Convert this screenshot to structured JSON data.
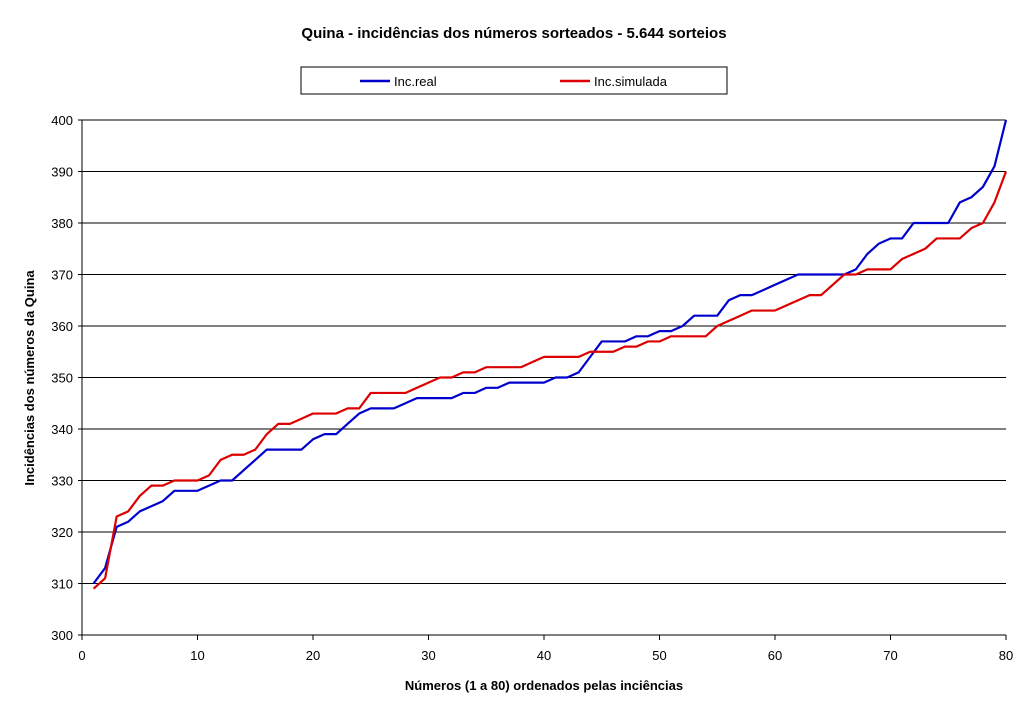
{
  "chart_data": {
    "type": "line",
    "title": "Quina - incidências dos números sorteados - 5.644 sorteios",
    "xlabel": "Números (1 a 80) ordenados pelas inciências",
    "ylabel": "Incidências dos números da Quina",
    "xlim": [
      0,
      80
    ],
    "ylim": [
      300,
      400
    ],
    "xticks": [
      "0",
      "10",
      "20",
      "30",
      "40",
      "50",
      "60",
      "70",
      "80"
    ],
    "yticks": [
      "300",
      "310",
      "320",
      "330",
      "340",
      "350",
      "360",
      "370",
      "380",
      "390",
      "400"
    ],
    "grid": "horizontal",
    "legend_position": "top",
    "series": [
      {
        "name": "Inc.real",
        "color": "#0000cc",
        "values": [
          310,
          313,
          321,
          322,
          324,
          325,
          326,
          328,
          328,
          328,
          329,
          330,
          330,
          332,
          334,
          336,
          336,
          336,
          336,
          338,
          339,
          339,
          341,
          343,
          344,
          344,
          344,
          345,
          346,
          346,
          346,
          346,
          347,
          347,
          348,
          348,
          349,
          349,
          349,
          349,
          350,
          350,
          351,
          354,
          357,
          357,
          357,
          358,
          358,
          359,
          359,
          360,
          362,
          362,
          362,
          365,
          366,
          366,
          367,
          368,
          369,
          370,
          370,
          370,
          370,
          370,
          371,
          374,
          376,
          377,
          377,
          380,
          380,
          380,
          380,
          384,
          385,
          387,
          391,
          400
        ]
      },
      {
        "name": "Inc.simulada",
        "color": "#dd0000",
        "values": [
          309,
          311,
          323,
          324,
          327,
          329,
          329,
          330,
          330,
          330,
          331,
          334,
          335,
          335,
          336,
          339,
          341,
          341,
          342,
          343,
          343,
          343,
          344,
          344,
          347,
          347,
          347,
          347,
          348,
          349,
          350,
          350,
          351,
          351,
          352,
          352,
          352,
          352,
          353,
          354,
          354,
          354,
          354,
          355,
          355,
          355,
          356,
          356,
          357,
          357,
          358,
          358,
          358,
          358,
          360,
          361,
          362,
          363,
          363,
          363,
          364,
          365,
          366,
          366,
          368,
          370,
          370,
          371,
          371,
          371,
          373,
          374,
          375,
          377,
          377,
          377,
          379,
          380,
          384,
          390
        ]
      }
    ]
  }
}
